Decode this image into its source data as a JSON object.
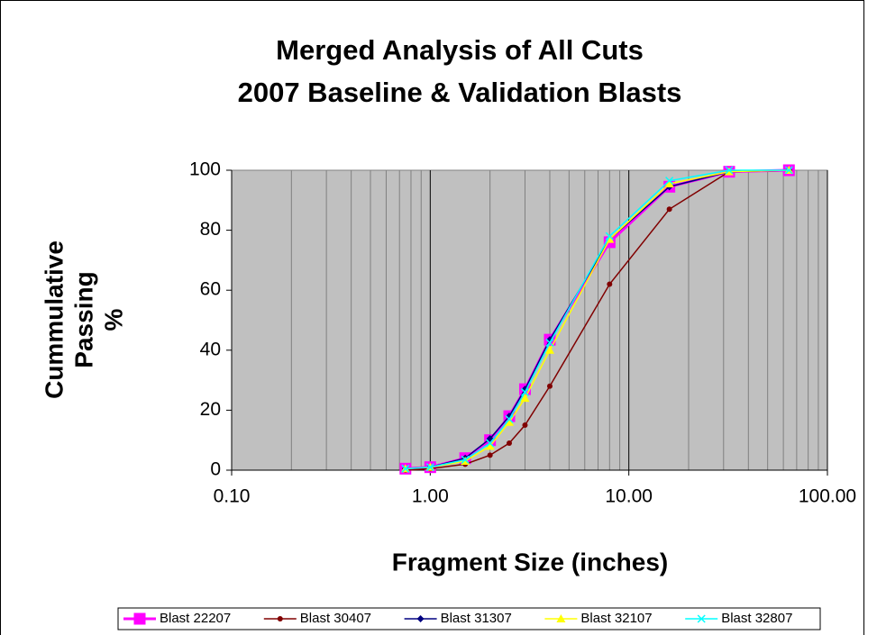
{
  "chart_data": {
    "type": "line",
    "title": [
      "Merged Analysis of All Cuts",
      "2007 Baseline & Validation Blasts"
    ],
    "xlabel": "Fragment Size (inches)",
    "ylabel": [
      "Cummulative",
      "Passing",
      "%"
    ],
    "x": [
      0.75,
      1,
      1.5,
      2,
      2.5,
      3,
      4,
      8,
      16,
      32,
      64
    ],
    "series": [
      {
        "name": "Blast 22207",
        "color": "#ff00ff",
        "marker": "square",
        "values": [
          0.5,
          1,
          4,
          10,
          18,
          27,
          43.5,
          76,
          94.5,
          99.5,
          100
        ]
      },
      {
        "name": "Blast 30407",
        "color": "#800000",
        "marker": "circle",
        "values": [
          0,
          0.5,
          2,
          5,
          9,
          15,
          28,
          62,
          87,
          99.5,
          100
        ]
      },
      {
        "name": "Blast 31307",
        "color": "#000080",
        "marker": "diamond",
        "values": [
          0.5,
          1,
          4,
          10.5,
          18,
          27,
          43.5,
          77,
          94.5,
          99.5,
          100
        ]
      },
      {
        "name": "Blast 32107",
        "color": "#ffff00",
        "marker": "triangle",
        "values": [
          0.5,
          1,
          3,
          8,
          16,
          24,
          40,
          77,
          95.5,
          99.5,
          100
        ]
      },
      {
        "name": "Blast 32807",
        "color": "#00ffff",
        "marker": "x",
        "values": [
          0.5,
          1,
          3.5,
          9,
          17,
          26,
          42.5,
          78,
          96.5,
          100,
          100
        ]
      }
    ],
    "xscale": "log",
    "xlim": [
      0.1,
      100
    ],
    "xticks": [
      {
        "value": 0.1,
        "label": "0.10"
      },
      {
        "value": 1,
        "label": "1.00"
      },
      {
        "value": 10,
        "label": "10.00"
      },
      {
        "value": 100,
        "label": "100.00"
      }
    ],
    "ylim": [
      0,
      100
    ],
    "yticks": [
      0,
      20,
      40,
      60,
      80,
      100
    ],
    "grid": "x-major-minor",
    "plot_background": "#c0c0c0",
    "legend": "bottom"
  }
}
